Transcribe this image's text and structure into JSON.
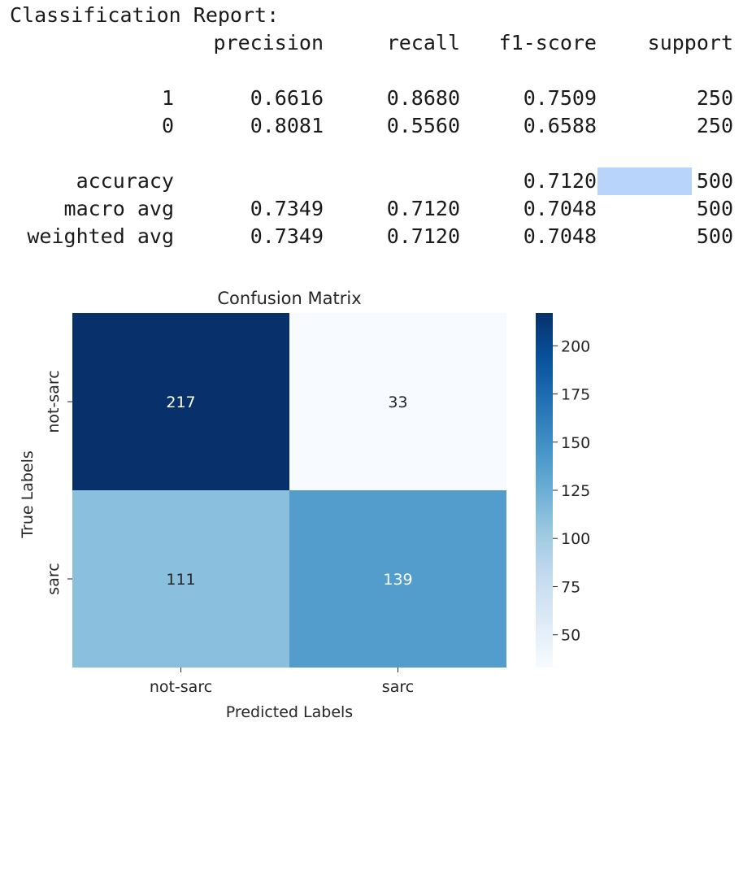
{
  "report": {
    "title": "Classification Report:",
    "headers": [
      "precision",
      "recall",
      "f1-score",
      "support"
    ],
    "rows": [
      {
        "label": "1",
        "precision": "0.6616",
        "recall": "0.8680",
        "f1": "0.7509",
        "support": "250"
      },
      {
        "label": "0",
        "precision": "0.8081",
        "recall": "0.5560",
        "f1": "0.6588",
        "support": "250"
      },
      {
        "label": "accuracy",
        "precision": "",
        "recall": "",
        "f1": "0.7120",
        "support": "500"
      },
      {
        "label": "macro avg",
        "precision": "0.7349",
        "recall": "0.7120",
        "f1": "0.7048",
        "support": "500"
      },
      {
        "label": "weighted avg",
        "precision": "0.7349",
        "recall": "0.7120",
        "f1": "0.7048",
        "support": "500"
      }
    ]
  },
  "chart_data": {
    "type": "heatmap",
    "title": "Confusion Matrix",
    "xlabel": "Predicted Labels",
    "ylabel": "True Labels",
    "x_categories": [
      "not-sarc",
      "sarc"
    ],
    "y_categories": [
      "not-sarc",
      "sarc"
    ],
    "values": [
      [
        217,
        33
      ],
      [
        111,
        139
      ]
    ],
    "colormap": "Blues",
    "vmin": 33,
    "vmax": 217,
    "colorbar_ticks": [
      50,
      75,
      100,
      125,
      150,
      175,
      200
    ]
  }
}
